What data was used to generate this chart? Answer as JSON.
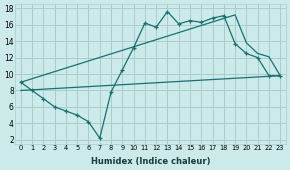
{
  "xlabel": "Humidex (Indice chaleur)",
  "bg_color": "#cceaea",
  "grid_color": "#aacccc",
  "line_color": "#1a7070",
  "xmin": -0.5,
  "xmax": 23.5,
  "ymin": 1.5,
  "ymax": 18.5,
  "yticks": [
    2,
    4,
    6,
    8,
    10,
    12,
    14,
    16,
    18
  ],
  "xticks": [
    0,
    1,
    2,
    3,
    4,
    5,
    6,
    7,
    8,
    9,
    10,
    11,
    12,
    13,
    14,
    15,
    16,
    17,
    18,
    19,
    20,
    21,
    22,
    23
  ],
  "line1_x": [
    0,
    1,
    2,
    3,
    4,
    5,
    6,
    7,
    8,
    9,
    10,
    11,
    12,
    13,
    14,
    15,
    16,
    17,
    18,
    19,
    20,
    21,
    22,
    23
  ],
  "line1_y": [
    9.0,
    8.0,
    7.0,
    6.0,
    5.5,
    5.0,
    4.2,
    2.2,
    7.8,
    10.5,
    13.2,
    16.2,
    15.7,
    17.6,
    16.1,
    16.5,
    16.3,
    16.8,
    17.1,
    13.7,
    12.5,
    12.0,
    9.8,
    9.8
  ],
  "line2_x": [
    0,
    19,
    20,
    21,
    22,
    23
  ],
  "line2_y": [
    9.0,
    17.2,
    13.8,
    12.5,
    12.1,
    9.8
  ],
  "line3_x": [
    0,
    23
  ],
  "line3_y": [
    8.0,
    9.8
  ]
}
